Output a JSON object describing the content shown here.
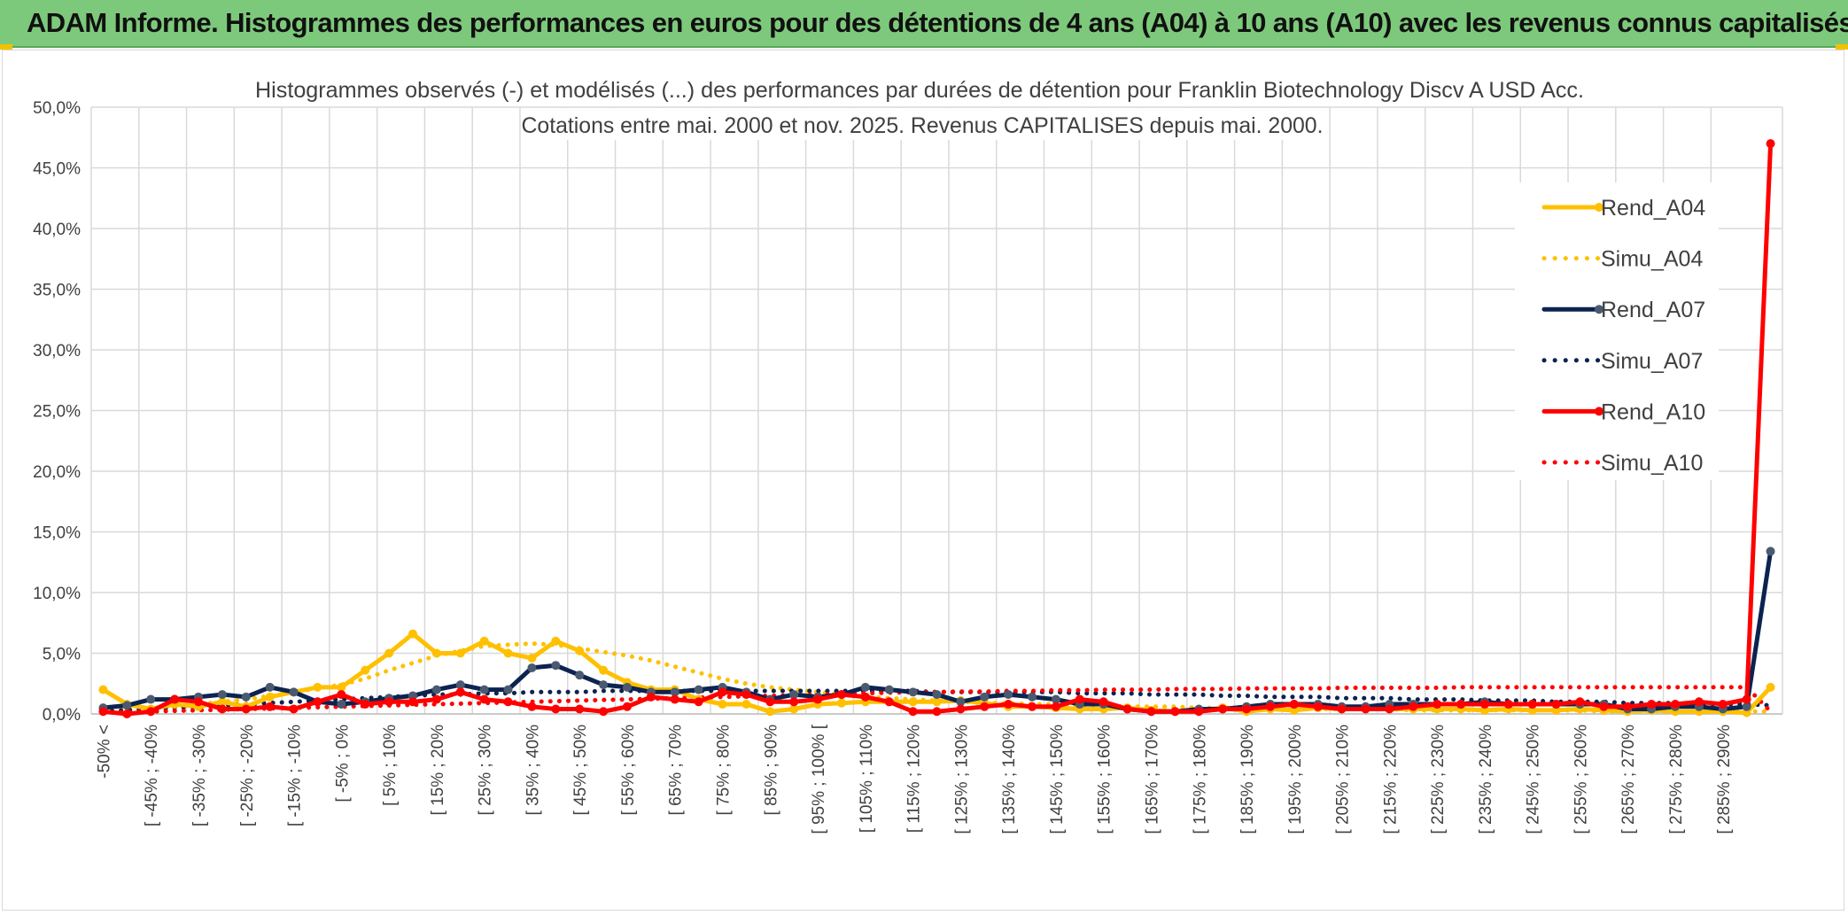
{
  "banner": {
    "title": "ADAM Informe. Histogrammes des performances en euros pour des détentions de 4 ans (A04) à 10 ans (A10) avec les revenus connus capitalisés"
  },
  "chart_data": {
    "type": "line",
    "title": "Histogrammes observés (-) et modélisés (...) des performances par durées de détention pour Franklin Biotechnology Discv A USD Acc.",
    "subtitle": "Cotations entre mai. 2000 et nov. 2025. Revenus CAPITALISES depuis mai. 2000.",
    "xlabel": "",
    "ylabel": "",
    "ylim": [
      0,
      50
    ],
    "grid": true,
    "legend_position": "right",
    "y_ticks": [
      "0,0%",
      "5,0%",
      "10,0%",
      "15,0%",
      "20,0%",
      "25,0%",
      "30,0%",
      "35,0%",
      "40,0%",
      "45,0%",
      "50,0%"
    ],
    "x_tick_labels": [
      "-50% <",
      "[ -45% ; -40%",
      "[ -35% ; -30%",
      "[ -25% ; -20%",
      "[ -15% ; -10%",
      "[ -5% ; 0%",
      "[ 5% ; 10%",
      "[ 15% ; 20%",
      "[ 25% ; 30%",
      "[ 35% ; 40%",
      "[ 45% ; 50%",
      "[ 55% ; 60%",
      "[ 65% ; 70%",
      "[ 75% ; 80%",
      "[ 85% ; 90%",
      "[ 95% ; 100% [",
      "[ 105% ; 110%",
      "[ 115% ; 120%",
      "[ 125% ; 130%",
      "[ 135% ; 140%",
      "[ 145% ; 150%",
      "[ 155% ; 160%",
      "[ 165% ; 170%",
      "[ 175% ; 180%",
      "[ 185% ; 190%",
      "[ 195% ; 200%",
      "[ 205% ; 210%",
      "[ 215% ; 220%",
      "[ 225% ; 230%",
      "[ 235% ; 240%",
      "[ 245% ; 250%",
      "[ 255% ; 260%",
      "[ 265% ; 270%",
      "[ 275% ; 280%",
      "[ 285% ; 290%"
    ],
    "n_points": 71,
    "series": [
      {
        "name": "Rend_A04",
        "style": "solid",
        "marker": true,
        "color": "#ffc000",
        "values": [
          2.0,
          0.8,
          0.4,
          0.8,
          0.6,
          1.0,
          0.6,
          1.4,
          1.8,
          2.2,
          2.2,
          3.6,
          5.0,
          6.6,
          5.0,
          5.0,
          6.0,
          5.0,
          4.6,
          6.0,
          5.2,
          3.6,
          2.6,
          2.0,
          2.0,
          1.2,
          0.8,
          0.8,
          0.2,
          0.4,
          0.8,
          0.9,
          1.0,
          1.0,
          1.0,
          1.0,
          1.1,
          0.9,
          0.6,
          0.6,
          0.5,
          0.4,
          0.4,
          0.5,
          0.3,
          0.2,
          0.3,
          0.5,
          0.2,
          0.4,
          0.3,
          0.5,
          0.4,
          0.4,
          0.4,
          0.4,
          0.4,
          0.4,
          0.3,
          0.4,
          0.3,
          0.3,
          0.4,
          0.3,
          0.2,
          0.3,
          0.2,
          0.2,
          0.2,
          0.1,
          2.2
        ]
      },
      {
        "name": "Simu_A04",
        "style": "dotted",
        "marker": false,
        "color": "#ffc000",
        "values": [
          0.3,
          0.4,
          0.5,
          0.6,
          0.8,
          1.0,
          1.2,
          1.5,
          1.8,
          2.1,
          2.4,
          2.9,
          3.6,
          4.2,
          4.8,
          5.2,
          5.6,
          5.7,
          5.8,
          5.7,
          5.4,
          5.1,
          4.8,
          4.4,
          3.9,
          3.4,
          2.9,
          2.5,
          2.2,
          2.0,
          1.8,
          1.6,
          1.4,
          1.3,
          1.2,
          1.1,
          1.0,
          0.9,
          0.9,
          0.8,
          0.8,
          0.7,
          0.7,
          0.6,
          0.6,
          0.6,
          0.5,
          0.5,
          0.5,
          0.5,
          0.4,
          0.4,
          0.4,
          0.4,
          0.4,
          0.3,
          0.3,
          0.3,
          0.3,
          0.3,
          0.3,
          0.3,
          0.3,
          0.2,
          0.2,
          0.2,
          0.2,
          0.2,
          0.2,
          0.2,
          0.2
        ]
      },
      {
        "name": "Rend_A07",
        "style": "solid",
        "marker": true,
        "color": "#0c2350",
        "values": [
          0.5,
          0.7,
          1.2,
          1.2,
          1.4,
          1.6,
          1.4,
          2.2,
          1.8,
          1.0,
          0.8,
          1.0,
          1.3,
          1.5,
          2.0,
          2.4,
          2.0,
          2.0,
          3.8,
          4.0,
          3.2,
          2.4,
          2.2,
          1.8,
          1.8,
          2.0,
          2.2,
          1.8,
          1.2,
          1.6,
          1.4,
          1.6,
          2.2,
          2.0,
          1.8,
          1.6,
          1.0,
          1.4,
          1.6,
          1.4,
          1.2,
          0.8,
          0.8,
          0.4,
          0.2,
          0.2,
          0.4,
          0.4,
          0.6,
          0.8,
          0.8,
          0.8,
          0.6,
          0.6,
          0.8,
          0.8,
          0.8,
          0.8,
          1.0,
          0.8,
          0.8,
          0.8,
          0.8,
          0.8,
          0.4,
          0.4,
          0.6,
          0.6,
          0.4,
          0.6,
          13.4
        ]
      },
      {
        "name": "Simu_A07",
        "style": "dotted",
        "marker": false,
        "color": "#0c2350",
        "values": [
          0.2,
          0.3,
          0.4,
          0.5,
          0.6,
          0.7,
          0.8,
          0.9,
          1.0,
          1.1,
          1.2,
          1.3,
          1.4,
          1.5,
          1.6,
          1.6,
          1.7,
          1.7,
          1.8,
          1.8,
          1.8,
          1.9,
          1.9,
          1.9,
          1.9,
          1.9,
          1.9,
          1.9,
          1.9,
          1.9,
          1.9,
          1.9,
          1.9,
          1.9,
          1.9,
          1.8,
          1.8,
          1.8,
          1.8,
          1.8,
          1.8,
          1.7,
          1.7,
          1.7,
          1.6,
          1.6,
          1.6,
          1.5,
          1.5,
          1.4,
          1.4,
          1.4,
          1.3,
          1.3,
          1.3,
          1.2,
          1.2,
          1.2,
          1.1,
          1.1,
          1.1,
          1.0,
          1.0,
          1.0,
          0.9,
          0.9,
          0.9,
          0.8,
          0.8,
          0.8,
          0.7
        ]
      },
      {
        "name": "Rend_A10",
        "style": "solid",
        "marker": true,
        "color": "#ff0000",
        "values": [
          0.2,
          0.0,
          0.2,
          1.2,
          1.0,
          0.4,
          0.4,
          0.6,
          0.4,
          1.0,
          1.6,
          0.8,
          1.0,
          1.0,
          1.2,
          1.8,
          1.2,
          1.0,
          0.6,
          0.4,
          0.4,
          0.2,
          0.6,
          1.4,
          1.2,
          1.0,
          1.8,
          1.6,
          1.0,
          1.0,
          1.2,
          1.6,
          1.4,
          1.0,
          0.2,
          0.2,
          0.4,
          0.6,
          0.8,
          0.6,
          0.6,
          1.2,
          1.0,
          0.4,
          0.2,
          0.2,
          0.2,
          0.4,
          0.4,
          0.6,
          0.8,
          0.6,
          0.4,
          0.4,
          0.4,
          0.6,
          0.8,
          0.8,
          0.8,
          0.8,
          0.8,
          0.8,
          1.0,
          0.6,
          0.6,
          0.8,
          0.8,
          1.0,
          0.8,
          1.2,
          47.0
        ]
      },
      {
        "name": "Simu_A10",
        "style": "dotted",
        "marker": false,
        "color": "#ff0000",
        "values": [
          0.1,
          0.15,
          0.2,
          0.25,
          0.3,
          0.35,
          0.4,
          0.45,
          0.5,
          0.55,
          0.6,
          0.65,
          0.7,
          0.75,
          0.8,
          0.85,
          0.9,
          0.95,
          1.0,
          1.05,
          1.1,
          1.15,
          1.2,
          1.25,
          1.3,
          1.35,
          1.4,
          1.45,
          1.5,
          1.55,
          1.6,
          1.65,
          1.7,
          1.75,
          1.8,
          1.8,
          1.85,
          1.85,
          1.9,
          1.9,
          1.95,
          1.95,
          2.0,
          2.0,
          2.0,
          2.05,
          2.05,
          2.05,
          2.1,
          2.1,
          2.1,
          2.1,
          2.15,
          2.15,
          2.15,
          2.15,
          2.15,
          2.2,
          2.2,
          2.2,
          2.2,
          2.2,
          2.2,
          2.2,
          2.2,
          2.2,
          2.2,
          2.2,
          2.2,
          2.2,
          0.2
        ]
      }
    ]
  },
  "colors": {
    "banner_bg": "#7dc97b",
    "grid": "#d9d9d9",
    "axis_text": "#404040",
    "title_text": "#404040"
  }
}
